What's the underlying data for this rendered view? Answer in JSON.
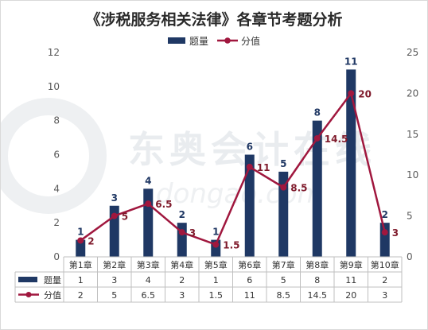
{
  "chart_data": {
    "type": "bar",
    "title": "《涉税服务相关法律》各章节考题分析",
    "categories": [
      "第1章",
      "第2章",
      "第3章",
      "第4章",
      "第5章",
      "第6章",
      "第7章",
      "第8章",
      "第9章",
      "第10章"
    ],
    "series": [
      {
        "name": "题量",
        "type": "bar",
        "axis": "left",
        "color": "#1f3864",
        "values": [
          1,
          3,
          4,
          2,
          1,
          6,
          5,
          8,
          11,
          2
        ]
      },
      {
        "name": "分值",
        "type": "line",
        "axis": "right",
        "color": "#a0173e",
        "values": [
          2,
          5,
          6.5,
          3,
          1.5,
          11,
          8.5,
          14.5,
          20,
          3
        ]
      }
    ],
    "y_left": {
      "min": 0,
      "max": 12,
      "ticks": [
        0,
        2,
        4,
        6,
        8,
        10,
        12
      ]
    },
    "y_right": {
      "min": 0,
      "max": 25,
      "ticks": [
        0,
        5,
        10,
        15,
        20,
        25
      ]
    },
    "legend_placement": "top-center",
    "data_table": true,
    "grid": false
  },
  "watermark": {
    "cn": "东奥会计在线",
    "en": "dongao.com"
  }
}
